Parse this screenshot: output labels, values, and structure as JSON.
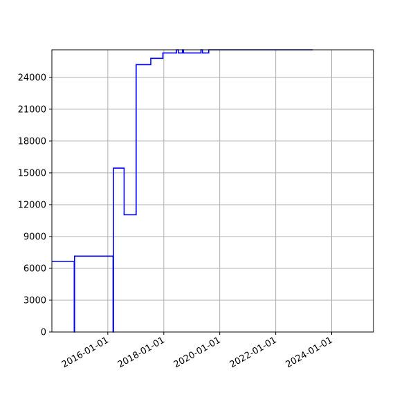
{
  "chart_data": {
    "type": "line",
    "step": true,
    "title": "",
    "xlabel": "",
    "ylabel": "",
    "grid": true,
    "line_color": "#0000ff",
    "grid_color": "#b0b0b0",
    "xlim": [
      "2014-01-01",
      "2025-06-30"
    ],
    "ylim": [
      0,
      26600
    ],
    "x_ticks": [
      {
        "date": "2016-01-01",
        "label": "2016-01-01"
      },
      {
        "date": "2018-01-01",
        "label": "2018-01-01"
      },
      {
        "date": "2020-01-01",
        "label": "2020-01-01"
      },
      {
        "date": "2022-01-01",
        "label": "2022-01-01"
      },
      {
        "date": "2024-01-01",
        "label": "2024-01-01"
      }
    ],
    "y_ticks": [
      {
        "value": 0,
        "label": "0"
      },
      {
        "value": 3000,
        "label": "3000"
      },
      {
        "value": 6000,
        "label": "6000"
      },
      {
        "value": 9000,
        "label": "9000"
      },
      {
        "value": 12000,
        "label": "12000"
      },
      {
        "value": 15000,
        "label": "15000"
      },
      {
        "value": 18000,
        "label": "18000"
      },
      {
        "value": 21000,
        "label": "21000"
      },
      {
        "value": 24000,
        "label": "24000"
      }
    ],
    "series": [
      {
        "points": [
          {
            "x": "2014-01-01",
            "y": 6650
          },
          {
            "x": "2014-10-20",
            "y": 6650
          },
          {
            "x": "2014-10-20",
            "y": 0
          },
          {
            "x": "2014-10-24",
            "y": 0
          },
          {
            "x": "2014-10-24",
            "y": 7150
          },
          {
            "x": "2016-03-10",
            "y": 7150
          },
          {
            "x": "2016-03-10",
            "y": 0
          },
          {
            "x": "2016-03-15",
            "y": 0
          },
          {
            "x": "2016-03-15",
            "y": 15450
          },
          {
            "x": "2016-08-01",
            "y": 15450
          },
          {
            "x": "2016-08-01",
            "y": 11050
          },
          {
            "x": "2017-01-05",
            "y": 11050
          },
          {
            "x": "2017-01-05",
            "y": 25200
          },
          {
            "x": "2017-07-15",
            "y": 25200
          },
          {
            "x": "2017-07-15",
            "y": 25800
          },
          {
            "x": "2017-12-20",
            "y": 25800
          },
          {
            "x": "2017-12-20",
            "y": 26300
          },
          {
            "x": "2018-06-15",
            "y": 26300
          },
          {
            "x": "2018-06-15",
            "y": 26600
          },
          {
            "x": "2018-07-10",
            "y": 26600
          },
          {
            "x": "2018-07-10",
            "y": 26300
          },
          {
            "x": "2018-09-01",
            "y": 26300
          },
          {
            "x": "2018-09-01",
            "y": 26600
          },
          {
            "x": "2018-09-15",
            "y": 26600
          },
          {
            "x": "2018-09-15",
            "y": 26300
          },
          {
            "x": "2019-05-01",
            "y": 26300
          },
          {
            "x": "2019-05-01",
            "y": 26600
          },
          {
            "x": "2019-05-20",
            "y": 26600
          },
          {
            "x": "2019-05-20",
            "y": 26300
          },
          {
            "x": "2019-08-10",
            "y": 26300
          },
          {
            "x": "2019-08-10",
            "y": 26600
          },
          {
            "x": "2023-05-01",
            "y": 26600
          }
        ]
      }
    ]
  }
}
